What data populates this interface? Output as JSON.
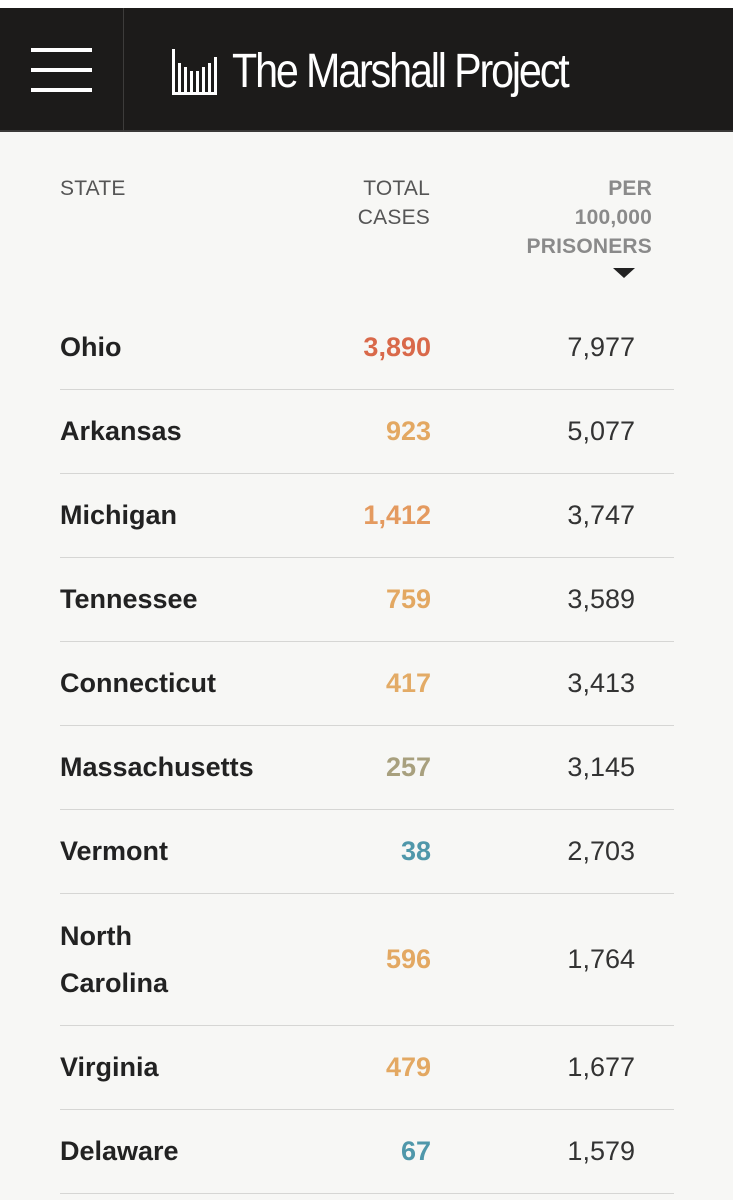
{
  "header": {
    "brand_name": "The Marshall Project",
    "menu_icon": "hamburger-menu-icon",
    "logo_icon": "marshall-bars-logo-icon",
    "background_color": "#1c1b1a"
  },
  "table": {
    "columns": {
      "state": "STATE",
      "total_cases": [
        "TOTAL",
        "CASES"
      ],
      "per_100000": [
        "PER",
        "100,000",
        "PRISONERS"
      ]
    },
    "sorted_by": "per_100000",
    "sort_direction": "descending",
    "rows": [
      {
        "state": [
          "Ohio"
        ],
        "total": "3,890",
        "total_color": "#d9694a",
        "per": "7,977"
      },
      {
        "state": [
          "Arkansas"
        ],
        "total": "923",
        "total_color": "#e3a862",
        "per": "5,077"
      },
      {
        "state": [
          "Michigan"
        ],
        "total": "1,412",
        "total_color": "#e49a5f",
        "per": "3,747"
      },
      {
        "state": [
          "Tennessee"
        ],
        "total": "759",
        "total_color": "#e3a862",
        "per": "3,589"
      },
      {
        "state": [
          "Connecticut"
        ],
        "total": "417",
        "total_color": "#e3ab66",
        "per": "3,413"
      },
      {
        "state": [
          "Massachusetts"
        ],
        "total": "257",
        "total_color": "#a8a07e",
        "per": "3,145"
      },
      {
        "state": [
          "Vermont"
        ],
        "total": "38",
        "total_color": "#4f97aa",
        "per": "2,703"
      },
      {
        "state": [
          "North",
          "Carolina"
        ],
        "total": "596",
        "total_color": "#e3a862",
        "per": "1,764"
      },
      {
        "state": [
          "Virginia"
        ],
        "total": "479",
        "total_color": "#e3a862",
        "per": "1,677"
      },
      {
        "state": [
          "Delaware"
        ],
        "total": "67",
        "total_color": "#4f97aa",
        "per": "1,579"
      }
    ]
  }
}
